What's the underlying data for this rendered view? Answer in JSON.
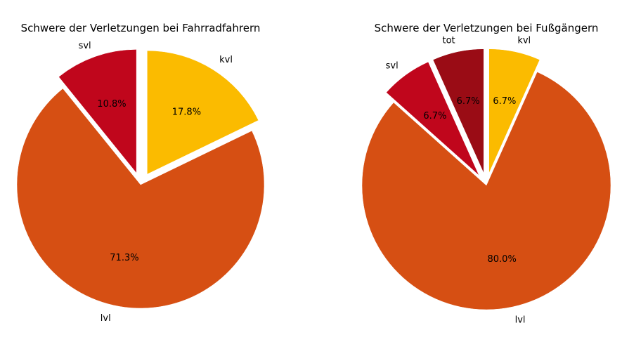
{
  "chart_data": [
    {
      "type": "pie",
      "title": "Schwere der Verletzungen bei Fahrradfahrern",
      "start_angle_deg": 90,
      "direction": "clockwise",
      "slices": [
        {
          "label": "kvl",
          "value": 17.8,
          "pct_label": "17.8%",
          "color": "#fbbb00",
          "exploded": true
        },
        {
          "label": "lvl",
          "value": 71.3,
          "pct_label": "71.3%",
          "color": "#d64f13",
          "exploded": false
        },
        {
          "label": "svl",
          "value": 10.8,
          "pct_label": "10.8%",
          "color": "#c0061c",
          "exploded": true
        }
      ]
    },
    {
      "type": "pie",
      "title": "Schwere der Verletzungen bei Fußgängern",
      "start_angle_deg": 90,
      "direction": "clockwise",
      "slices": [
        {
          "label": "kvl",
          "value": 6.7,
          "pct_label": "6.7%",
          "color": "#fbbb00",
          "exploded": true
        },
        {
          "label": "lvl",
          "value": 80.0,
          "pct_label": "80.0%",
          "color": "#d64f13",
          "exploded": false
        },
        {
          "label": "svl",
          "value": 6.7,
          "pct_label": "6.7%",
          "color": "#c0061c",
          "exploded": true
        },
        {
          "label": "tot",
          "value": 6.7,
          "pct_label": "6.7%",
          "color": "#9a0c15",
          "exploded": true
        }
      ]
    }
  ]
}
